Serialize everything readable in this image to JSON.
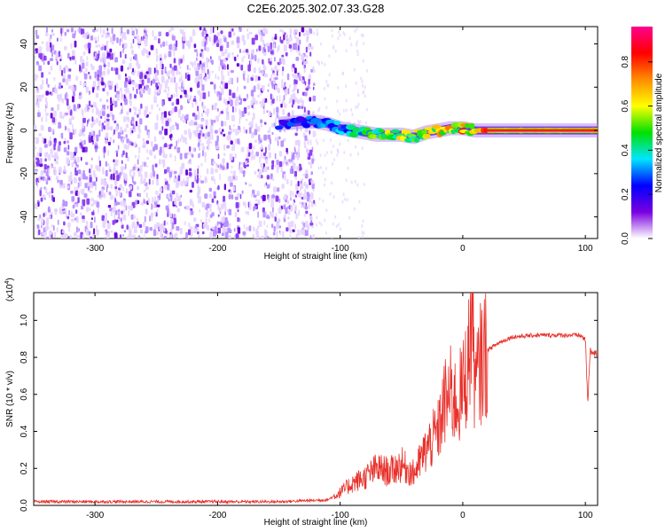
{
  "title": "C2E6.2025.302.07.33.G28",
  "chart_data": [
    {
      "type": "heatmap",
      "xlabel": "Height of straight line (km)",
      "ylabel": "Frequency (Hz)",
      "xlim": [
        -350,
        110
      ],
      "ylim": [
        -50,
        48
      ],
      "x_ticks": [
        -300,
        -200,
        -100,
        0,
        100
      ],
      "y_ticks": [
        -40,
        -20,
        0,
        20,
        40
      ],
      "colorbar": {
        "label": "Normalized spectral amplitude",
        "range": [
          0,
          0.96
        ],
        "ticks": [
          0.0,
          0.2,
          0.4,
          0.6,
          0.8
        ],
        "colormap": [
          "#ffffff",
          "#7a00e0",
          "#0000ff",
          "#00e5ff",
          "#00e000",
          "#ffff00",
          "#ff8c00",
          "#ff0000",
          "#ff0090"
        ]
      },
      "noise_region_x": [
        -350,
        -122
      ],
      "signal_track": [
        {
          "x": -150,
          "y": 3,
          "amp": 0.25
        },
        {
          "x": -130,
          "y": 4,
          "amp": 0.3
        },
        {
          "x": -120,
          "y": 4,
          "amp": 0.35
        },
        {
          "x": -110,
          "y": 3,
          "amp": 0.35
        },
        {
          "x": -100,
          "y": 1,
          "amp": 0.4
        },
        {
          "x": -90,
          "y": 0,
          "amp": 0.45
        },
        {
          "x": -80,
          "y": -1,
          "amp": 0.5
        },
        {
          "x": -70,
          "y": -2,
          "amp": 0.55
        },
        {
          "x": -60,
          "y": -2,
          "amp": 0.6
        },
        {
          "x": -50,
          "y": -2,
          "amp": 0.65
        },
        {
          "x": -40,
          "y": -3,
          "amp": 0.6
        },
        {
          "x": -30,
          "y": -1,
          "amp": 0.65
        },
        {
          "x": -20,
          "y": 0,
          "amp": 0.7
        },
        {
          "x": -10,
          "y": 1,
          "amp": 0.75
        },
        {
          "x": 0,
          "y": 1,
          "amp": 0.8
        },
        {
          "x": 10,
          "y": 0,
          "amp": 0.85
        },
        {
          "x": 20,
          "y": 0,
          "amp": 0.9
        },
        {
          "x": 40,
          "y": 0,
          "amp": 0.95
        },
        {
          "x": 60,
          "y": 0,
          "amp": 0.95
        },
        {
          "x": 80,
          "y": 0,
          "amp": 0.95
        },
        {
          "x": 100,
          "y": 0,
          "amp": 0.96
        },
        {
          "x": 110,
          "y": 0,
          "amp": 0.9
        }
      ]
    },
    {
      "type": "line",
      "xlabel": "Height of straight line (km)",
      "ylabel": "SNR (10 * v/v)",
      "y_scale_label": "(x10",
      "y_scale_exponent": "4",
      "y_scale_close": ")",
      "xlim": [
        -350,
        110
      ],
      "ylim": [
        0,
        1.15
      ],
      "x_ticks": [
        -300,
        -200,
        -100,
        0,
        100
      ],
      "y_ticks": [
        0.0,
        0.2,
        0.4,
        0.6,
        0.8,
        1.0
      ],
      "y_tick_labels": [
        "0.0",
        "0.2",
        "0.4",
        "0.6",
        "0.8",
        "1.0"
      ],
      "line_color": "#e8302a",
      "series": [
        {
          "name": "SNR",
          "x": [
            -350,
            -300,
            -250,
            -200,
            -150,
            -110,
            -100,
            -90,
            -80,
            -70,
            -60,
            -50,
            -40,
            -30,
            -25,
            -20,
            -15,
            -10,
            -5,
            0,
            5,
            8,
            10,
            15,
            20,
            30,
            40,
            60,
            80,
            95,
            100,
            102,
            104,
            106,
            110
          ],
          "y": [
            0.02,
            0.02,
            0.02,
            0.02,
            0.02,
            0.03,
            0.07,
            0.12,
            0.15,
            0.2,
            0.18,
            0.22,
            0.17,
            0.3,
            0.35,
            0.4,
            0.55,
            0.6,
            0.55,
            0.62,
            0.8,
            1.1,
            0.62,
            0.78,
            0.84,
            0.88,
            0.91,
            0.92,
            0.92,
            0.92,
            0.9,
            0.55,
            0.85,
            0.82,
            0.82
          ]
        }
      ]
    }
  ]
}
